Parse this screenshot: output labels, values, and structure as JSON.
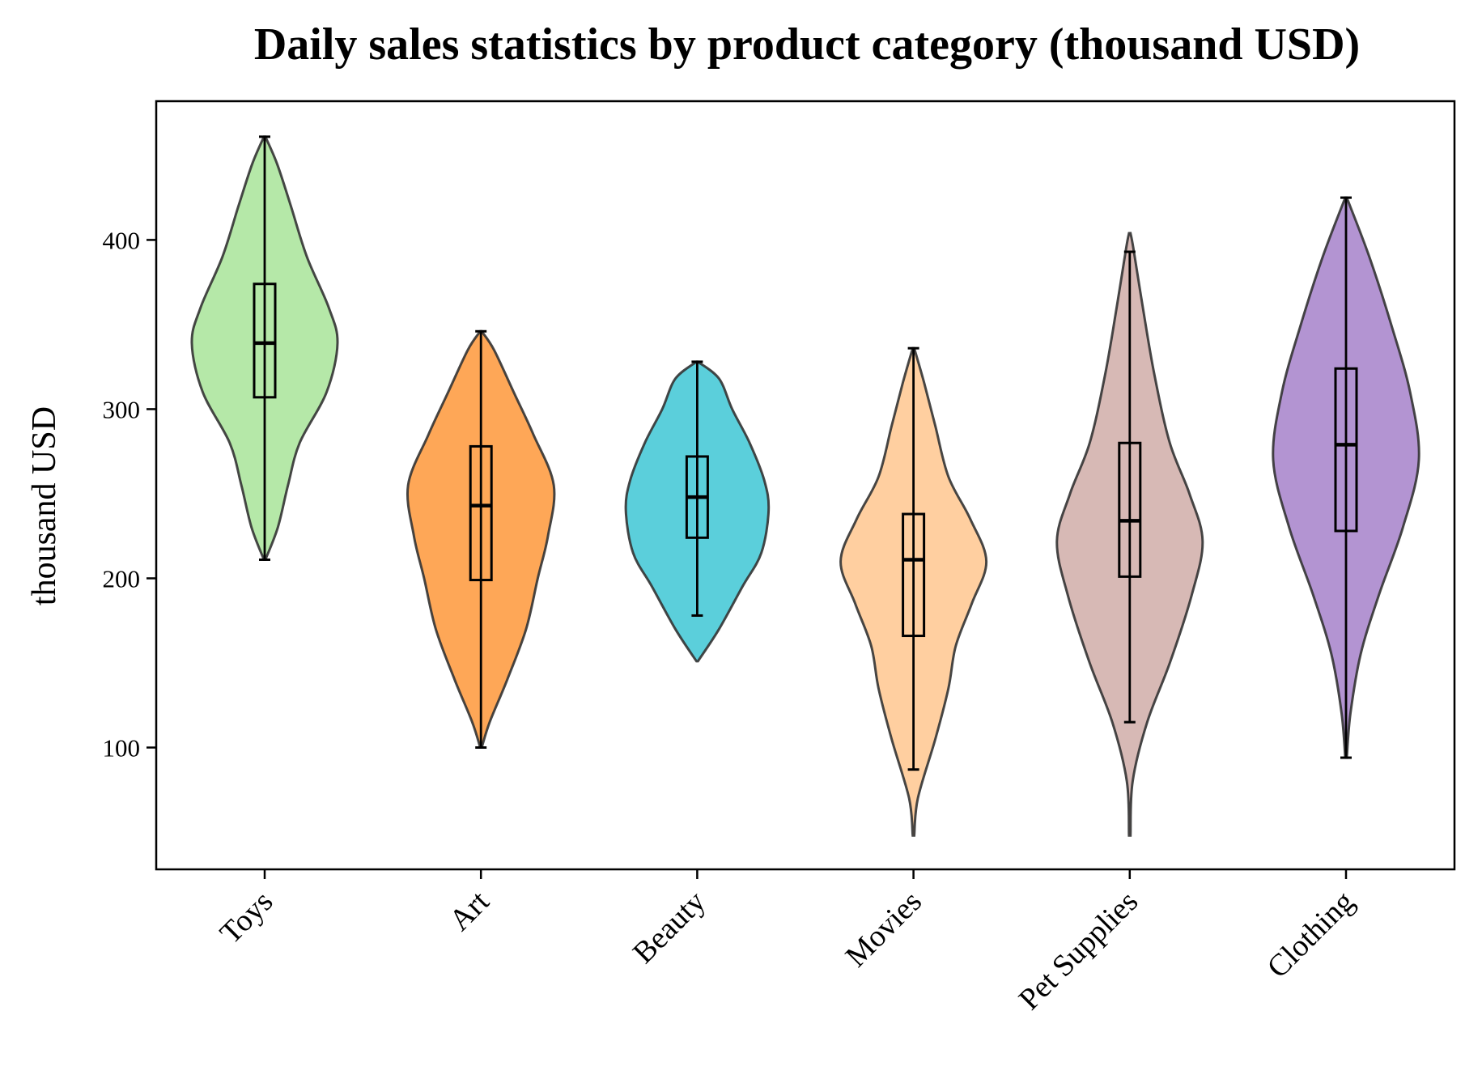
{
  "chart_data": {
    "type": "violin",
    "title": "Daily sales statistics by product category (thousand USD)",
    "xlabel": "",
    "ylabel": "thousand USD",
    "ylim": [
      28,
      482
    ],
    "yticks": [
      100,
      200,
      300,
      400
    ],
    "grid": false,
    "legend": "none",
    "categories": [
      "Toys",
      "Art",
      "Beauty",
      "Movies",
      "Pet Supplies",
      "Clothing"
    ],
    "series": [
      {
        "category": "Toys",
        "color": "#b5e8a8",
        "min": 211,
        "q1": 307,
        "median": 339,
        "q3": 374,
        "max": 461,
        "density": [
          [
            211,
            0.01
          ],
          [
            230,
            0.18
          ],
          [
            255,
            0.32
          ],
          [
            280,
            0.48
          ],
          [
            310,
            0.85
          ],
          [
            339,
            1.0
          ],
          [
            360,
            0.88
          ],
          [
            390,
            0.58
          ],
          [
            420,
            0.36
          ],
          [
            445,
            0.17
          ],
          [
            461,
            0.01
          ]
        ]
      },
      {
        "category": "Art",
        "color": "#fea757",
        "min": 100,
        "q1": 199,
        "median": 243,
        "q3": 278,
        "max": 346,
        "density": [
          [
            100,
            0.01
          ],
          [
            115,
            0.12
          ],
          [
            140,
            0.36
          ],
          [
            170,
            0.62
          ],
          [
            200,
            0.78
          ],
          [
            225,
            0.92
          ],
          [
            255,
            1.0
          ],
          [
            285,
            0.72
          ],
          [
            310,
            0.45
          ],
          [
            335,
            0.18
          ],
          [
            346,
            0.01
          ]
        ]
      },
      {
        "category": "Beauty",
        "color": "#5bcfdb",
        "min": 178,
        "q1": 224,
        "median": 248,
        "q3": 272,
        "max": 328,
        "density": [
          [
            151,
            0.01
          ],
          [
            170,
            0.3
          ],
          [
            195,
            0.62
          ],
          [
            215,
            0.88
          ],
          [
            240,
            0.98
          ],
          [
            258,
            0.92
          ],
          [
            280,
            0.72
          ],
          [
            300,
            0.48
          ],
          [
            318,
            0.3
          ],
          [
            328,
            0.01
          ]
        ]
      },
      {
        "category": "Movies",
        "color": "#ffcfa0",
        "min": 87,
        "q1": 166,
        "median": 211,
        "q3": 238,
        "max": 336,
        "density": [
          [
            48,
            0.01
          ],
          [
            70,
            0.06
          ],
          [
            105,
            0.3
          ],
          [
            135,
            0.48
          ],
          [
            160,
            0.58
          ],
          [
            185,
            0.8
          ],
          [
            210,
            1.0
          ],
          [
            235,
            0.78
          ],
          [
            260,
            0.48
          ],
          [
            290,
            0.3
          ],
          [
            315,
            0.15
          ],
          [
            336,
            0.01
          ]
        ]
      },
      {
        "category": "Pet Supplies",
        "color": "#d7b9b5",
        "min": 115,
        "q1": 201,
        "median": 234,
        "q3": 280,
        "max": 393,
        "density": [
          [
            48,
            0.01
          ],
          [
            80,
            0.04
          ],
          [
            115,
            0.24
          ],
          [
            150,
            0.55
          ],
          [
            190,
            0.85
          ],
          [
            222,
            1.0
          ],
          [
            250,
            0.82
          ],
          [
            280,
            0.55
          ],
          [
            320,
            0.34
          ],
          [
            360,
            0.18
          ],
          [
            395,
            0.05
          ],
          [
            404,
            0.01
          ]
        ]
      },
      {
        "category": "Clothing",
        "color": "#b394d2",
        "min": 94,
        "q1": 228,
        "median": 279,
        "q3": 324,
        "max": 425,
        "density": [
          [
            94,
            0.01
          ],
          [
            120,
            0.06
          ],
          [
            155,
            0.2
          ],
          [
            190,
            0.45
          ],
          [
            230,
            0.78
          ],
          [
            270,
            1.0
          ],
          [
            310,
            0.88
          ],
          [
            350,
            0.62
          ],
          [
            390,
            0.32
          ],
          [
            425,
            0.01
          ]
        ]
      }
    ]
  }
}
